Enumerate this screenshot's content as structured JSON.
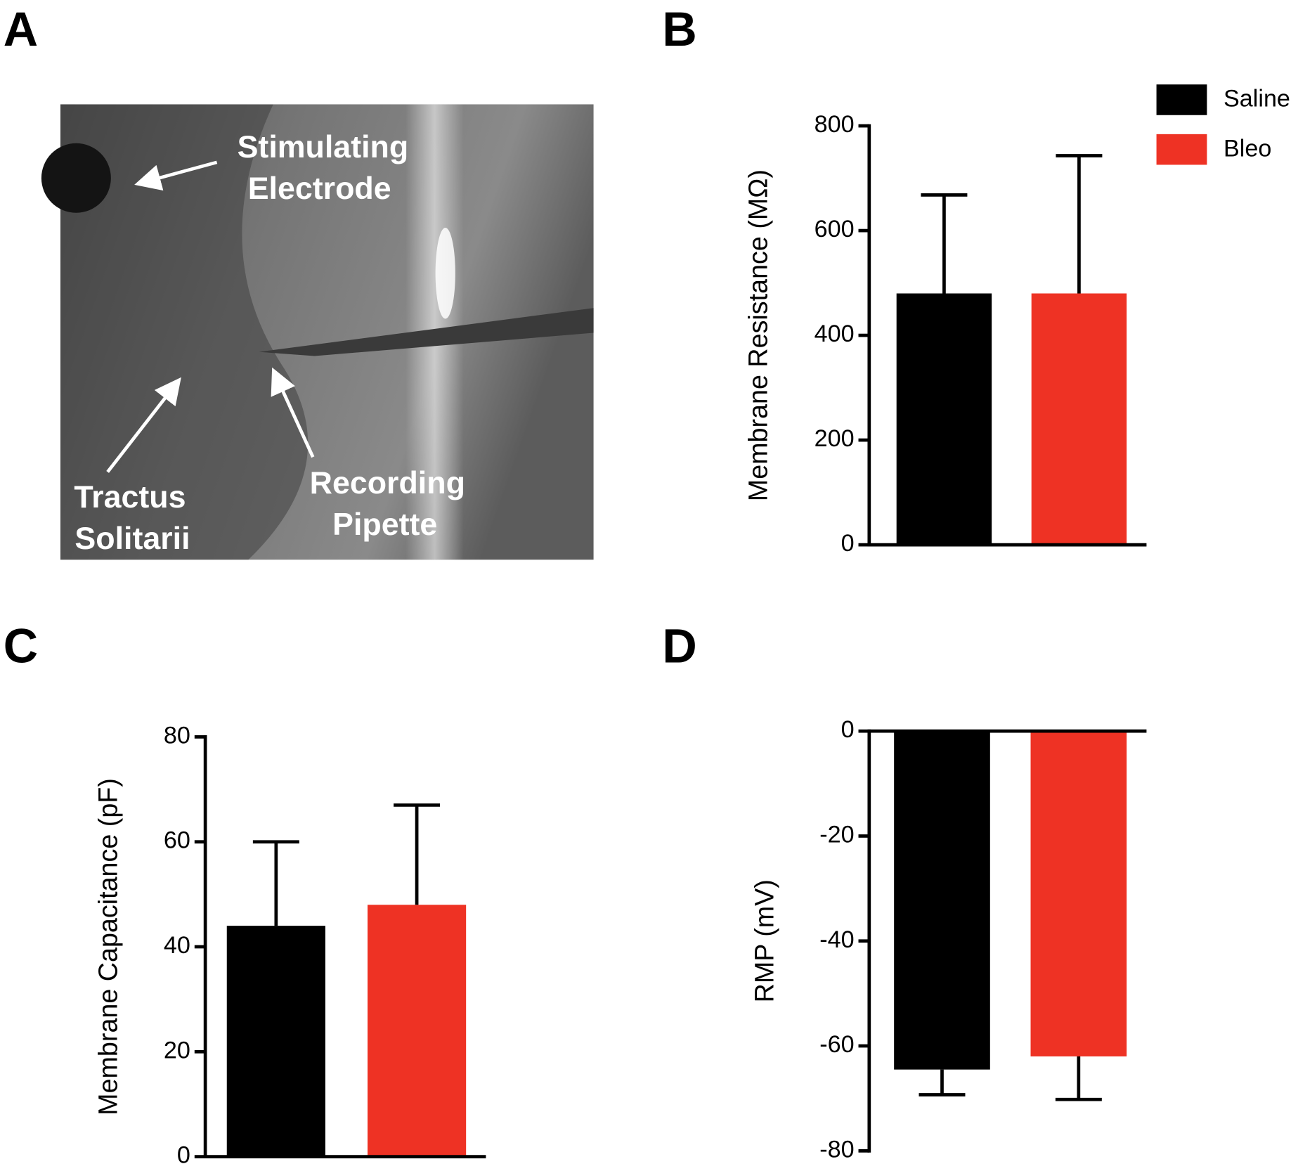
{
  "image_panel": {
    "panel": "A",
    "labels": [
      [
        "Stimulating",
        "Electrode"
      ],
      [
        "Tractus",
        "Solitarii"
      ],
      [
        "Recording",
        "Pipette"
      ]
    ]
  },
  "legend": {
    "series": [
      {
        "name": "Saline",
        "color": "#000000"
      },
      {
        "name": "Bleo",
        "color": "#ee3224"
      }
    ]
  },
  "chart_data": [
    {
      "type": "bar",
      "panel": "B",
      "y_label": "Membrane Resistance (MΩ)",
      "values": [
        480,
        480
      ],
      "errors": [
        188,
        263
      ],
      "ylim": [
        0,
        800
      ],
      "yticks": [
        0,
        200,
        400,
        600,
        800
      ]
    },
    {
      "type": "bar",
      "panel": "C",
      "y_label": "Membrane Capacitance (pF)",
      "values": [
        44,
        48
      ],
      "errors": [
        16,
        19
      ],
      "ylim": [
        0,
        80
      ],
      "yticks": [
        0,
        20,
        40,
        60,
        80
      ]
    },
    {
      "type": "bar",
      "panel": "D",
      "y_label": "RMP (mV)",
      "values": [
        -64.5,
        -62
      ],
      "errors": [
        4.8,
        8.2
      ],
      "ylim": [
        -80,
        0
      ],
      "yticks": [
        0,
        -20,
        -40,
        -60,
        -80
      ]
    }
  ]
}
